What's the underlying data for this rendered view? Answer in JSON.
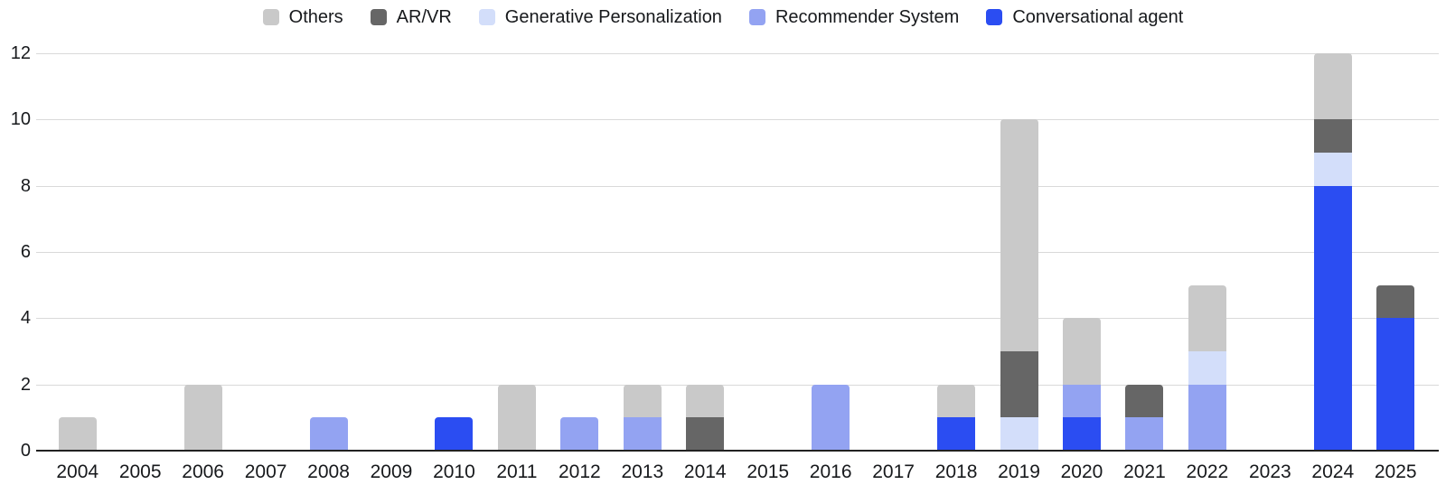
{
  "legend": {
    "items": [
      {
        "label": "Others",
        "color": "#c9c9c9"
      },
      {
        "label": "AR/VR",
        "color": "#666666"
      },
      {
        "label": "Generative Personalization",
        "color": "#d3defa"
      },
      {
        "label": "Recommender System",
        "color": "#93a3f2"
      },
      {
        "label": "Conversational agent",
        "color": "#2b4df2"
      }
    ]
  },
  "chart_data": {
    "type": "bar",
    "stacked": true,
    "title": "",
    "xlabel": "",
    "ylabel": "",
    "grid": true,
    "legend_position": "top-center",
    "categories": [
      "2004",
      "2005",
      "2006",
      "2007",
      "2008",
      "2009",
      "2010",
      "2011",
      "2012",
      "2013",
      "2014",
      "2015",
      "2016",
      "2017",
      "2018",
      "2019",
      "2020",
      "2021",
      "2022",
      "2023",
      "2024",
      "2025"
    ],
    "series": [
      {
        "name": "Conversational agent",
        "color": "#2b4df2",
        "values": [
          0,
          0,
          0,
          0,
          0,
          0,
          1,
          0,
          0,
          0,
          0,
          0,
          0,
          0,
          1,
          0,
          1,
          0,
          0,
          0,
          8,
          4
        ]
      },
      {
        "name": "Recommender System",
        "color": "#93a3f2",
        "values": [
          0,
          0,
          0,
          0,
          1,
          0,
          0,
          0,
          1,
          1,
          0,
          0,
          2,
          0,
          0,
          0,
          1,
          1,
          2,
          0,
          0,
          0
        ]
      },
      {
        "name": "Generative Personalization",
        "color": "#d3defa",
        "values": [
          0,
          0,
          0,
          0,
          0,
          0,
          0,
          0,
          0,
          0,
          0,
          0,
          0,
          0,
          0,
          1,
          0,
          0,
          1,
          0,
          1,
          0
        ]
      },
      {
        "name": "AR/VR",
        "color": "#666666",
        "values": [
          0,
          0,
          0,
          0,
          0,
          0,
          0,
          0,
          0,
          0,
          1,
          0,
          0,
          0,
          0,
          2,
          0,
          1,
          0,
          0,
          1,
          1
        ]
      },
      {
        "name": "Others",
        "color": "#c9c9c9",
        "values": [
          1,
          0,
          2,
          0,
          0,
          0,
          0,
          2,
          0,
          1,
          1,
          0,
          0,
          0,
          1,
          7,
          2,
          0,
          2,
          0,
          2,
          0
        ]
      }
    ],
    "totals": [
      1,
      0,
      2,
      0,
      1,
      0,
      1,
      2,
      1,
      2,
      2,
      0,
      2,
      0,
      2,
      10,
      4,
      2,
      5,
      0,
      12,
      5
    ],
    "ylim": [
      0,
      12
    ],
    "yticks": [
      0,
      2,
      4,
      6,
      8,
      10,
      12
    ]
  }
}
